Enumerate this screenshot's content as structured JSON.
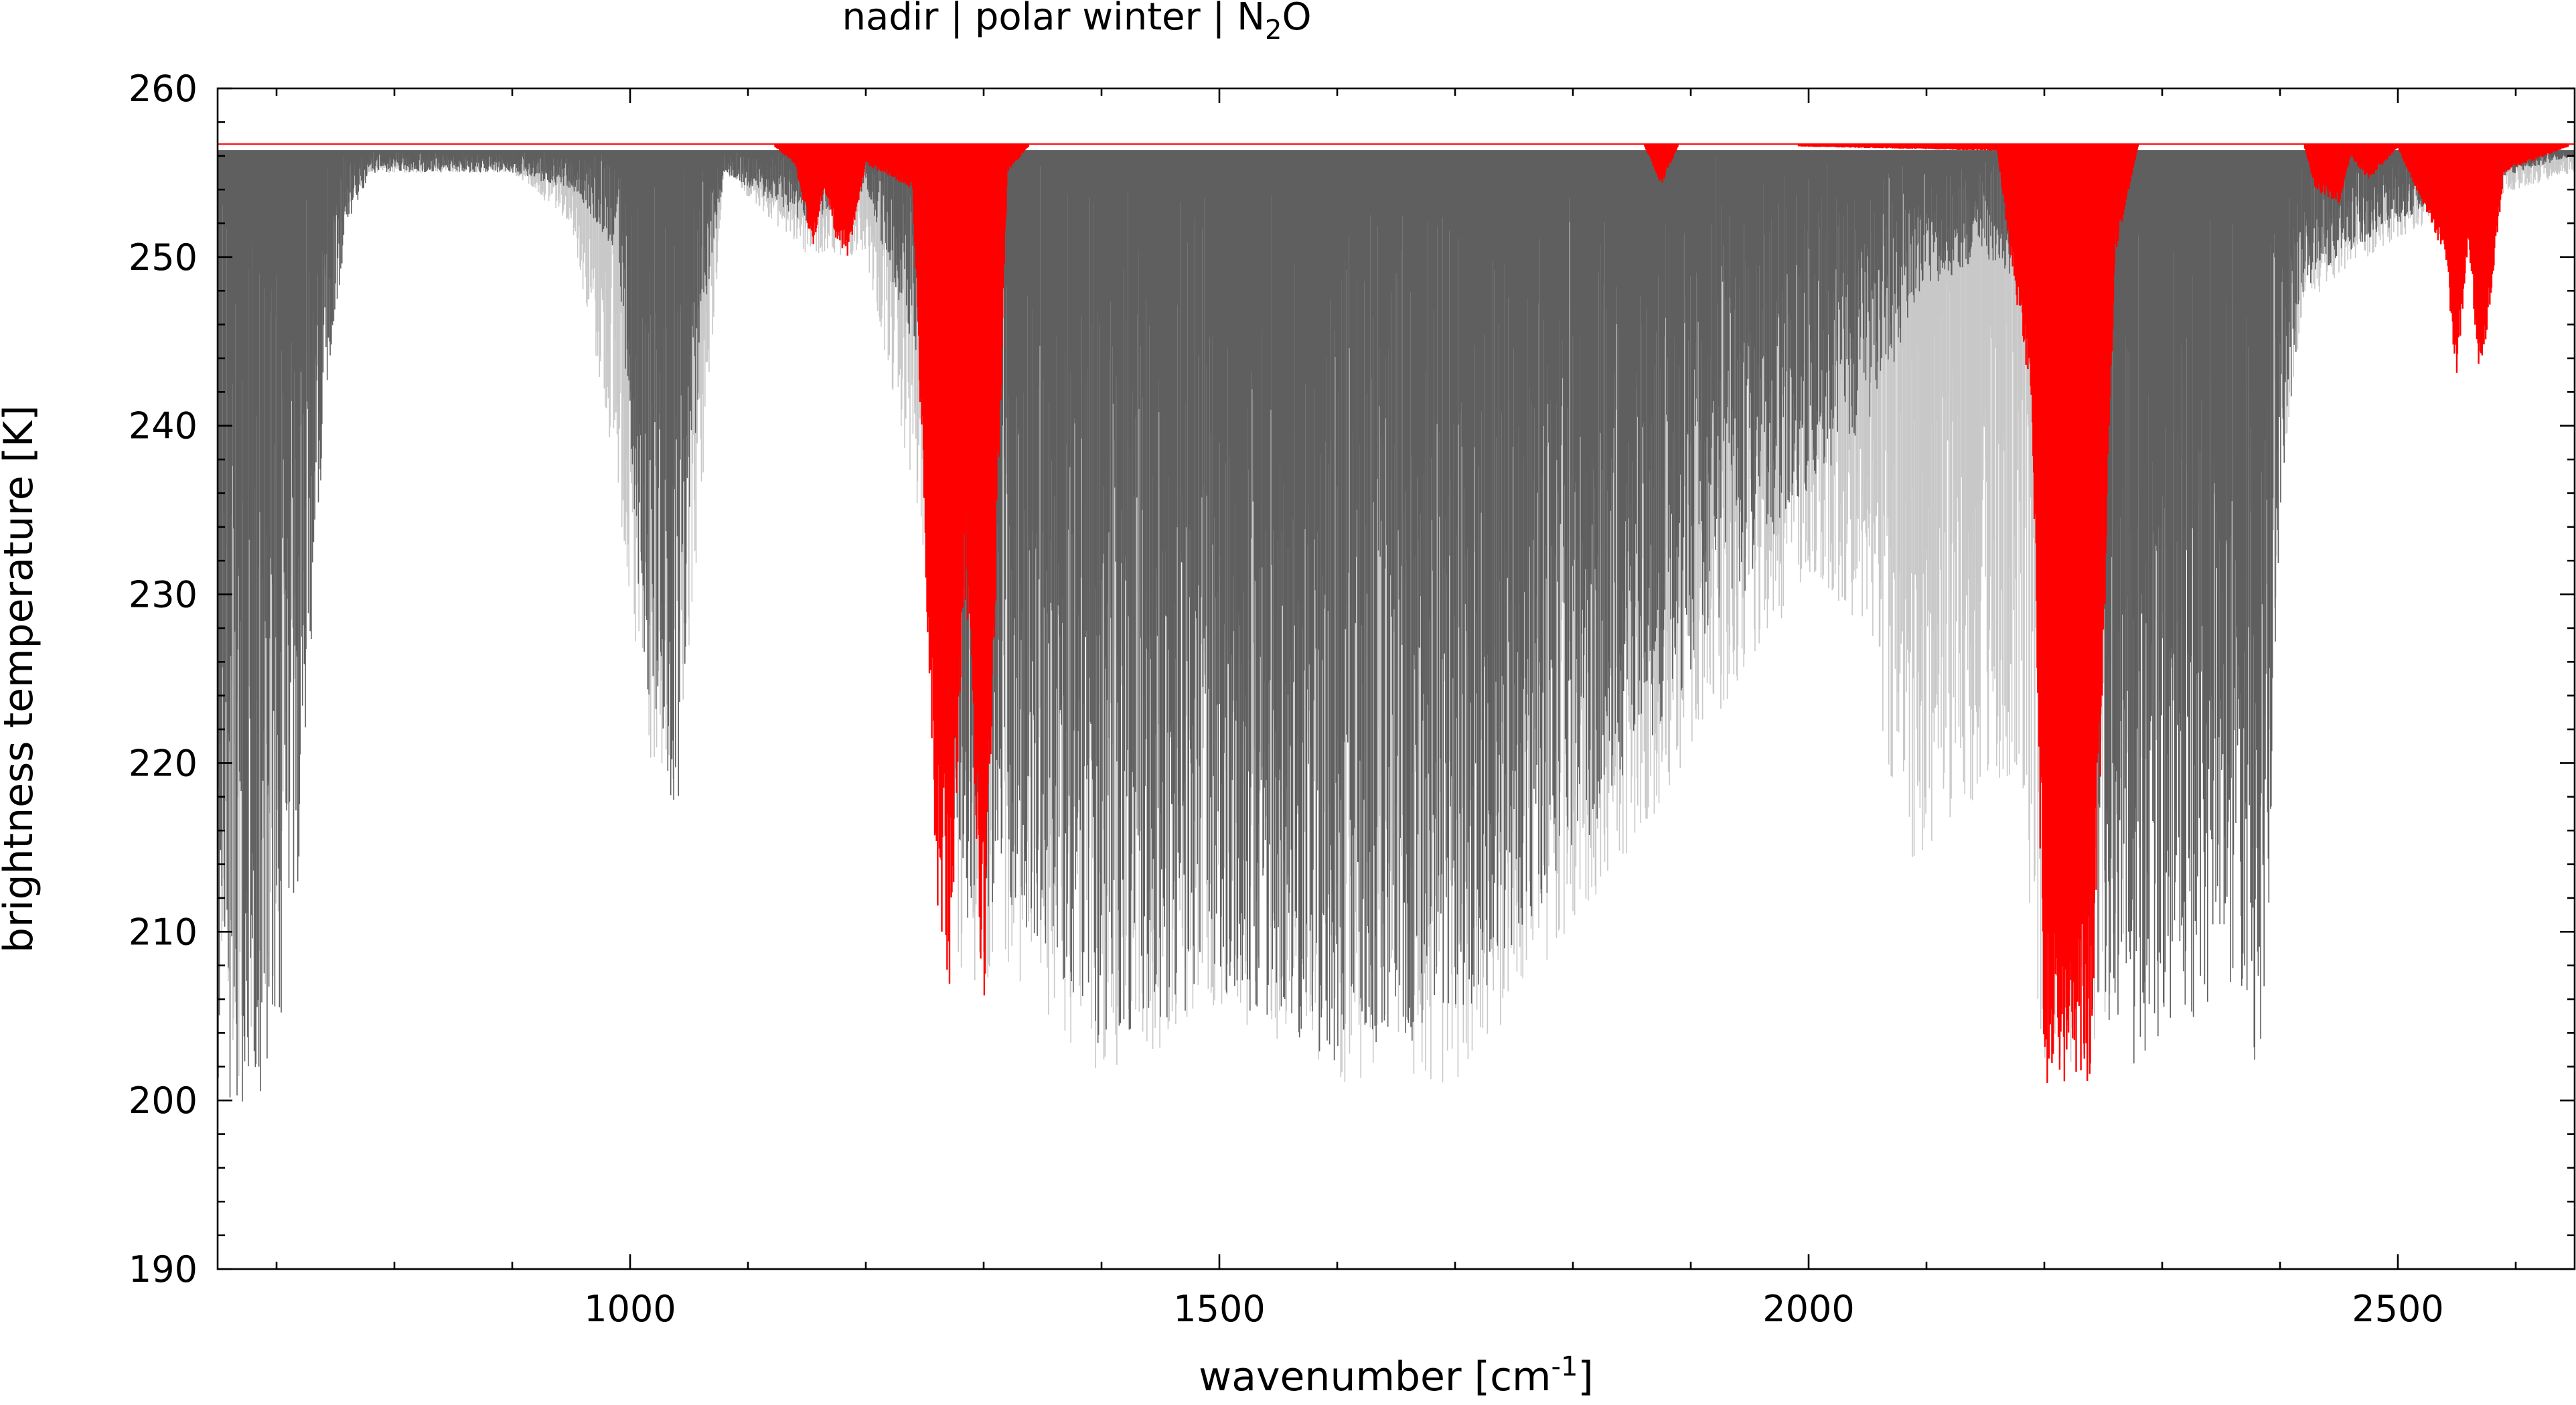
{
  "chart_data": {
    "type": "line",
    "title": {
      "prefix": "nadir | polar winter | N",
      "sub": "2",
      "suffix": "O"
    },
    "xlabel": {
      "prefix": "wavenumber [cm",
      "sup": "-1",
      "suffix": "]"
    },
    "ylabel": "brightness temperature [K]",
    "xlim": [
      650,
      2650
    ],
    "ylim": [
      190,
      260
    ],
    "x_ticks": [
      {
        "value": 1000,
        "label": "1000"
      },
      {
        "value": 1500,
        "label": "1500"
      },
      {
        "value": 2000,
        "label": "2000"
      },
      {
        "value": 2500,
        "label": "2500"
      }
    ],
    "y_ticks": [
      {
        "value": 190,
        "label": "190"
      },
      {
        "value": 200,
        "label": "200"
      },
      {
        "value": 210,
        "label": "210"
      },
      {
        "value": 220,
        "label": "220"
      },
      {
        "value": 230,
        "label": "230"
      },
      {
        "value": 240,
        "label": "240"
      },
      {
        "value": 250,
        "label": "250"
      },
      {
        "value": 260,
        "label": "260"
      }
    ],
    "grid": false,
    "legend": "none",
    "series": [
      {
        "role": "all gases (light grey)",
        "color": "#c8c8c8",
        "baseline": 256.3,
        "x": [
          650,
          665,
          680,
          700,
          720,
          740,
          760,
          780,
          800,
          900,
          950,
          990,
          1010,
          1040,
          1060,
          1080,
          1150,
          1200,
          1250,
          1280,
          1320,
          1400,
          1500,
          1600,
          1700,
          1800,
          1900,
          2000,
          2050,
          2080,
          2100,
          2150,
          2180,
          2200,
          2240,
          2280,
          2300,
          2340,
          2370,
          2390,
          2400,
          2420,
          2450,
          2500,
          2550,
          2600,
          2650
        ],
        "y_min": [
          208,
          200,
          203,
          208,
          228,
          248,
          253,
          255,
          255,
          255,
          252,
          236,
          220,
          216,
          235,
          255,
          250,
          250,
          232,
          206,
          208,
          201,
          205,
          201,
          201,
          210,
          220,
          231,
          228,
          213,
          215,
          218,
          218,
          201,
          201,
          212,
          222,
          234,
          230,
          218,
          236,
          247,
          249,
          251,
          253,
          254,
          255
        ]
      },
      {
        "role": "all gases (dark grey)",
        "color": "#5f5f5f",
        "baseline": 256.3,
        "x": [
          650,
          665,
          680,
          700,
          720,
          740,
          760,
          780,
          800,
          900,
          950,
          990,
          1010,
          1040,
          1060,
          1080,
          1150,
          1200,
          1250,
          1280,
          1320,
          1400,
          1500,
          1600,
          1700,
          1800,
          1900,
          2000,
          2050,
          2080,
          2100,
          2150,
          2180,
          2200,
          2240,
          2280,
          2300,
          2340,
          2370,
          2380,
          2390,
          2400,
          2420,
          2450,
          2500,
          2550,
          2600,
          2650
        ],
        "y_min": [
          200,
          199,
          199,
          203,
          214,
          240,
          252,
          255,
          255,
          255,
          254,
          250,
          226,
          216,
          245,
          255,
          252,
          254,
          242,
          210,
          212,
          203,
          206,
          202,
          204,
          214,
          225,
          236,
          240,
          245,
          248,
          250,
          248,
          240,
          204,
          202,
          203,
          204,
          207,
          200,
          210,
          235,
          248,
          250,
          252,
          254,
          255,
          256
        ]
      },
      {
        "role": "N2O (red)",
        "color": "#ff0000",
        "baseline": 256.7,
        "x": [
          650,
          1120,
          1140,
          1155,
          1165,
          1175,
          1185,
          1200,
          1240,
          1260,
          1270,
          1285,
          1300,
          1320,
          1340,
          1860,
          1875,
          1890,
          2160,
          2190,
          2200,
          2220,
          2240,
          2250,
          2260,
          2280,
          2420,
          2430,
          2450,
          2460,
          2475,
          2500,
          2540,
          2550,
          2560,
          2570,
          2590,
          2650
        ],
        "y_min": [
          256.7,
          256.7,
          255.5,
          250.5,
          254,
          251,
          250,
          255.5,
          254,
          212,
          205,
          230,
          204,
          255,
          256.7,
          256.7,
          254.2,
          256.7,
          256.3,
          240,
          201,
          201,
          201,
          225,
          250,
          256.7,
          256.7,
          254,
          253,
          256,
          254.5,
          256.5,
          250,
          242.5,
          251,
          241.5,
          255,
          256.7
        ]
      }
    ]
  }
}
